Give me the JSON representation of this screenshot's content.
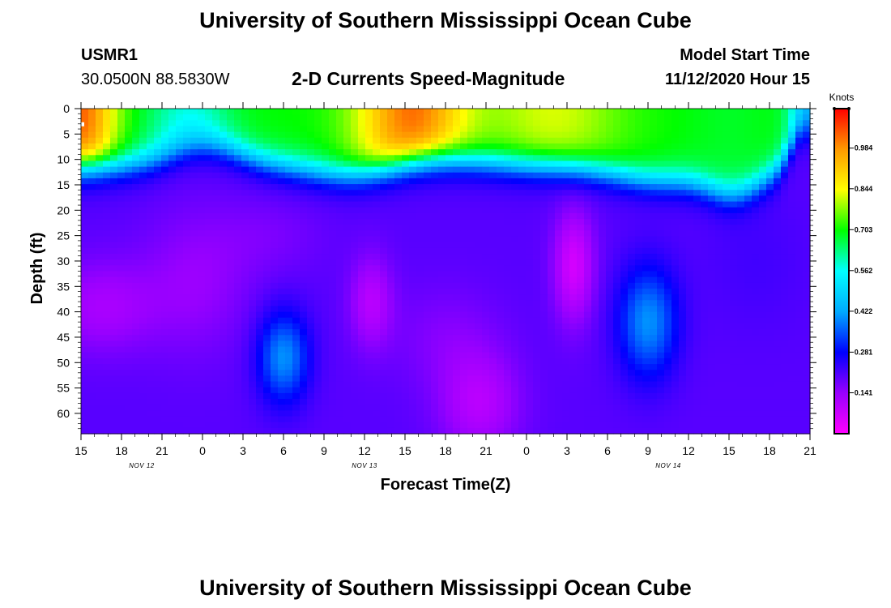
{
  "header": {
    "title": "University of Southern Mississippi Ocean Cube",
    "station_id": "USMR1",
    "station_coords": "30.0500N 88.5830W",
    "product": "2-D Currents Speed-Magnitude",
    "model_start_label": "Model Start Time",
    "model_start_value": "11/12/2020 Hour 15"
  },
  "footer": {
    "title": "University of Southern Mississippi Ocean Cube"
  },
  "chart_data": {
    "type": "heatmap",
    "title": "2-D Currents Speed-Magnitude",
    "xlabel": "Forecast Time(Z)",
    "ylabel": "Depth (ft)",
    "x_ticks": [
      "15",
      "18",
      "21",
      "0",
      "3",
      "6",
      "9",
      "12",
      "15",
      "18",
      "21",
      "0",
      "3",
      "6",
      "9",
      "12",
      "15",
      "18",
      "21"
    ],
    "date_labels": [
      {
        "label": "NOV 12",
        "at_tick": 1.5
      },
      {
        "label": "NOV 13",
        "at_tick": 7
      },
      {
        "label": "NOV 14",
        "at_tick": 14.5
      }
    ],
    "y_ticks": [
      0,
      5,
      10,
      15,
      20,
      25,
      30,
      35,
      40,
      45,
      50,
      55,
      60
    ],
    "y_range": [
      0,
      64
    ],
    "y_inverted": true,
    "x_hours_range": [
      0,
      54
    ],
    "colorbar": {
      "units": "Knots",
      "range": [
        0,
        1.12
      ],
      "tick_values": [
        0.141,
        0.281,
        0.422,
        0.562,
        0.703,
        0.844,
        0.984
      ],
      "tick_labels": [
        "0.141",
        "0.281",
        "0.422",
        "0.562",
        "0.703",
        "0.844",
        "0.984"
      ],
      "colors": [
        "#ff00ff",
        "#9900ff",
        "#0000ff",
        "#00aaff",
        "#00ffff",
        "#00ff00",
        "#ffff00",
        "#ff9900",
        "#ff0000"
      ]
    },
    "max_marker": {
      "hour": 0,
      "depth": 3
    }
  }
}
